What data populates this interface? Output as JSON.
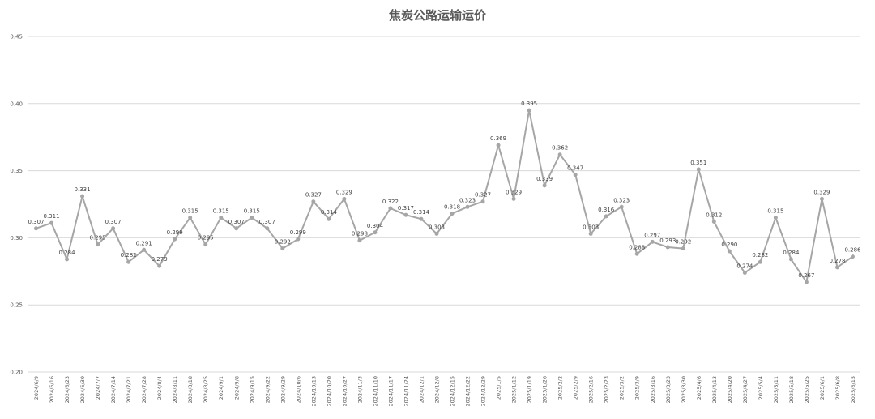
{
  "chart_data": {
    "type": "line",
    "title": "焦炭公路运输运价",
    "ylim": [
      0.2,
      0.45
    ],
    "ytick_labels": [
      "0.20",
      "0.25",
      "0.30",
      "0.35",
      "0.40",
      "0.45"
    ],
    "grid": {
      "horizontal": true,
      "vertical": false
    },
    "show_legend": false,
    "categories": [
      "2024/6/9",
      "2024/6/16",
      "2024/6/23",
      "2024/6/30",
      "2024/7/7",
      "2024/7/14",
      "2024/7/21",
      "2024/7/28",
      "2024/8/4",
      "2024/8/11",
      "2024/8/18",
      "2024/8/25",
      "2024/9/1",
      "2024/9/8",
      "2024/9/15",
      "2024/9/22",
      "2024/9/29",
      "2024/10/6",
      "2024/10/13",
      "2024/10/20",
      "2024/10/27",
      "2024/11/3",
      "2024/11/10",
      "2024/11/17",
      "2024/11/24",
      "2024/12/1",
      "2024/12/8",
      "2024/12/15",
      "2024/12/22",
      "2024/12/29",
      "2025/1/5",
      "2025/1/12",
      "2025/1/19",
      "2025/1/26",
      "2025/2/2",
      "2025/2/9",
      "2025/2/16",
      "2025/2/23",
      "2025/3/2",
      "2025/3/9",
      "2025/3/16",
      "2025/3/23",
      "2025/3/30",
      "2025/4/6",
      "2025/4/13",
      "2025/4/20",
      "2025/4/27",
      "2025/5/4",
      "2025/5/11",
      "2025/5/18",
      "2025/5/25",
      "2025/6/1",
      "2025/6/8",
      "2025/6/15"
    ],
    "series": [
      {
        "color": "#a6a6a6",
        "values": [
          0.307,
          0.311,
          0.284,
          0.331,
          0.295,
          0.307,
          0.282,
          0.291,
          0.279,
          0.299,
          0.315,
          0.295,
          0.315,
          0.307,
          0.315,
          0.307,
          0.292,
          0.299,
          0.327,
          0.314,
          0.329,
          0.298,
          0.304,
          0.322,
          0.317,
          0.314,
          0.303,
          0.318,
          0.323,
          0.327,
          0.369,
          0.329,
          0.395,
          0.339,
          0.362,
          0.347,
          0.303,
          0.316,
          0.323,
          0.288,
          0.297,
          0.293,
          0.292,
          0.351,
          0.312,
          0.29,
          0.274,
          0.282,
          0.315,
          0.284,
          0.267,
          0.329,
          0.278,
          0.286
        ]
      }
    ],
    "data_labels": [
      "0.307",
      "0.311",
      "0.284",
      "0.331",
      "0.295",
      "0.307",
      "0.282",
      "0.291",
      "0.279",
      "0.299",
      "0.315",
      "0.295",
      "0.315",
      "0.307",
      "0.315",
      "0.307",
      "0.292",
      "0.299",
      "0.327",
      "0.314",
      "0.329",
      "0.298",
      "0.304",
      "0.322",
      "0.317",
      "0.314",
      "0.303",
      "0.318",
      "0.323",
      "0.327",
      "0.369",
      "0.329",
      "0.395",
      "0.339",
      "0.362",
      "0.347",
      "0.303",
      "0.316",
      "0.323",
      "0.288",
      "0.297",
      "0.293",
      "0.292",
      "0.351",
      "0.312",
      "0.290",
      "0.274",
      "0.282",
      "0.315",
      "0.284",
      "0.267",
      "0.329",
      "0.278",
      "0.286"
    ]
  }
}
